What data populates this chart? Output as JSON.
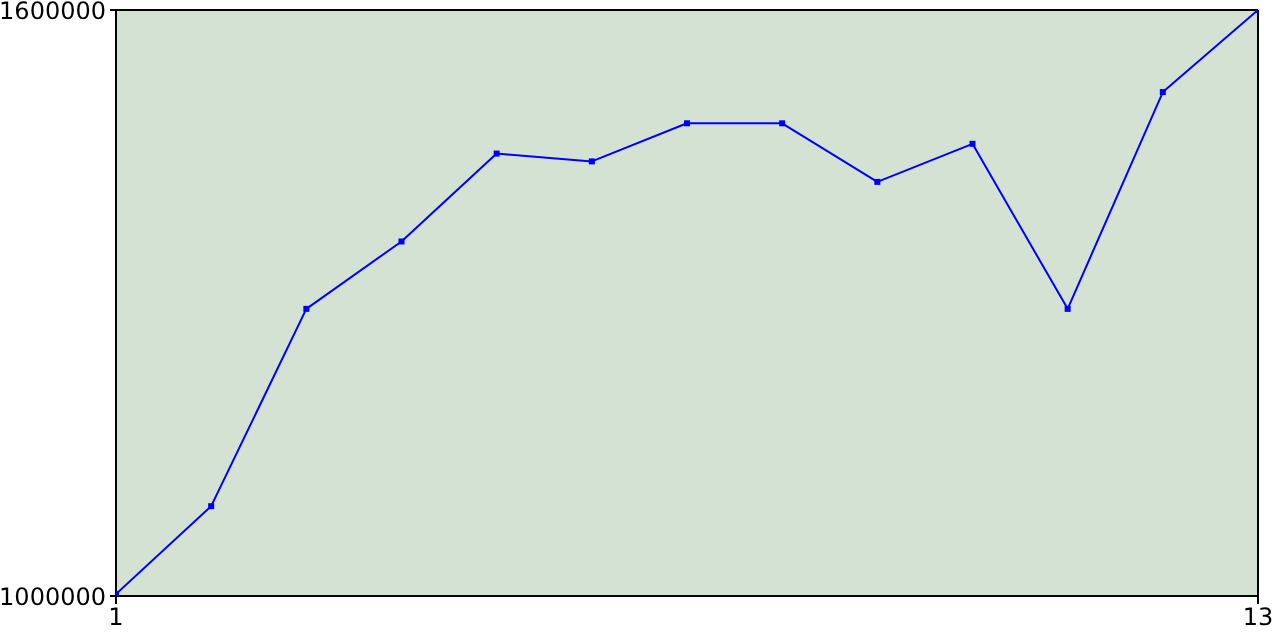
{
  "chart_data": {
    "type": "line",
    "x": [
      1,
      2,
      3,
      4,
      5,
      6,
      7,
      8,
      9,
      10,
      11,
      12,
      13
    ],
    "series": [
      {
        "color": "#0000ff",
        "values": [
          1002000,
          1092000,
          1294000,
          1363000,
          1453000,
          1445000,
          1484000,
          1484000,
          1424000,
          1463000,
          1294000,
          1516000,
          1600000
        ]
      }
    ],
    "xlim": [
      1,
      13
    ],
    "xticks": [
      1,
      13
    ],
    "ylim": [
      1000000,
      1600000
    ],
    "yticks": [
      1000000,
      1600000
    ],
    "legend": false,
    "marker": "square",
    "line_style": "solid"
  }
}
